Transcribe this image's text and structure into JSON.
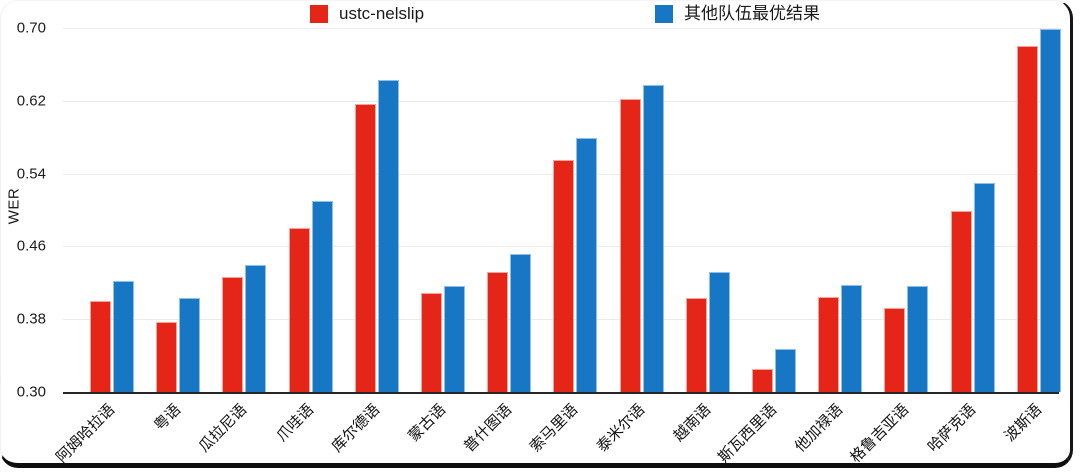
{
  "frame": {
    "border_color": "#111111",
    "background": "#ffffff"
  },
  "chart_data": {
    "type": "bar",
    "title": "",
    "xlabel": "",
    "ylabel": "WER",
    "ylim": [
      0.3,
      0.7
    ],
    "yticks": [
      0.3,
      0.38,
      0.46,
      0.54,
      0.62,
      0.7
    ],
    "grid": true,
    "legend_position": "top",
    "gridline_color": "#ebebeb",
    "axis_color": "#262626",
    "categories": [
      "阿姆哈拉语",
      "粤语",
      "瓜拉尼语",
      "爪哇语",
      "库尔德语",
      "蒙古语",
      "普什图语",
      "索马里语",
      "泰米尔语",
      "越南语",
      "斯瓦西里语",
      "他加禄语",
      "格鲁吉亚语",
      "哈萨克语",
      "波斯语"
    ],
    "series": [
      {
        "name": "ustc-nelslip",
        "color": "#e62519",
        "values": [
          0.4,
          0.377,
          0.426,
          0.48,
          0.617,
          0.409,
          0.432,
          0.555,
          0.622,
          0.403,
          0.325,
          0.404,
          0.392,
          0.499,
          0.68
        ]
      },
      {
        "name": "其他队伍最优结果",
        "color": "#1777c4",
        "values": [
          0.422,
          0.403,
          0.44,
          0.51,
          0.643,
          0.417,
          0.452,
          0.579,
          0.637,
          0.432,
          0.347,
          0.418,
          0.416,
          0.53,
          0.699
        ]
      }
    ]
  }
}
